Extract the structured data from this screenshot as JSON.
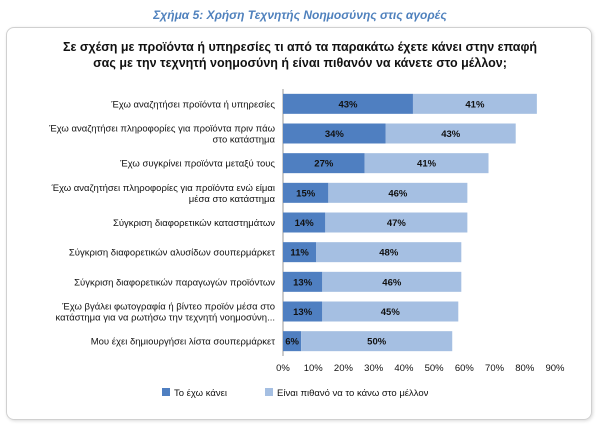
{
  "figure_title": "Σχήμα 5: Χρήση Τεχνητής Νοημοσύνης στις αγορές",
  "chart_data": {
    "type": "bar",
    "orientation": "horizontal",
    "stacked": true,
    "title": "Σε σχέση με προϊόντα ή υπηρεσίες τι από τα παρακάτω έχετε κάνει στην επαφή σας με την τεχνητή νοημοσύνη ή είναι πιθανόν να κάνετε στο μέλλον;",
    "title_lines": [
      "Σε σχέση με προϊόντα ή υπηρεσίες τι από τα παρακάτω έχετε κάνει στην επαφή",
      "σας με την τεχνητή νοημοσύνη ή είναι πιθανόν να κάνετε στο μέλλον;"
    ],
    "categories": [
      [
        "Έχω αναζητήσει προϊόντα ή υπηρεσίες"
      ],
      [
        "Έχω αναζητήσει πληροφορίες για προϊόντα πριν πάω",
        "στο κατάστημα"
      ],
      [
        "Έχω συγκρίνει προϊόντα μεταξύ τους"
      ],
      [
        "Έχω αναζητήσει πληροφορίες για προϊόντα ενώ είμαι",
        "μέσα στο κατάστημα"
      ],
      [
        "Σύγκριση διαφορετικών καταστημάτων"
      ],
      [
        "Σύγκριση διαφορετικών αλυσίδων σουπερμάρκετ"
      ],
      [
        "Σύγκριση διαφορετικών παραγωγών προϊόντων"
      ],
      [
        "Έχω βγάλει φωτογραφία ή βίντεο προϊόν μέσα στο",
        "κατάστημα για να ρωτήσω την τεχνητή νοημοσύνη..."
      ],
      [
        "Μου έχει δημιουργήσει λίστα σουπερμάρκετ"
      ]
    ],
    "series": [
      {
        "name": "Το έχω κάνει",
        "color": "#4f7fc1",
        "values": [
          43,
          34,
          27,
          15,
          14,
          11,
          13,
          13,
          6
        ]
      },
      {
        "name": "Είναι πιθανό να το κάνω στο μέλλον",
        "color": "#a5bfe2",
        "values": [
          41,
          43,
          41,
          46,
          47,
          48,
          46,
          45,
          50
        ]
      }
    ],
    "value_labels": [
      [
        "43%",
        "34%",
        "27%",
        "15%",
        "14%",
        "11%",
        "13%",
        "13%",
        "6%"
      ],
      [
        "41%",
        "43%",
        "41%",
        "46%",
        "47%",
        "48%",
        "46%",
        "45%",
        "50%"
      ]
    ],
    "xlim": [
      0,
      90
    ],
    "xticks": [
      "0%",
      "10%",
      "20%",
      "30%",
      "40%",
      "50%",
      "60%",
      "70%",
      "80%",
      "90%"
    ],
    "legend_position": "bottom"
  }
}
